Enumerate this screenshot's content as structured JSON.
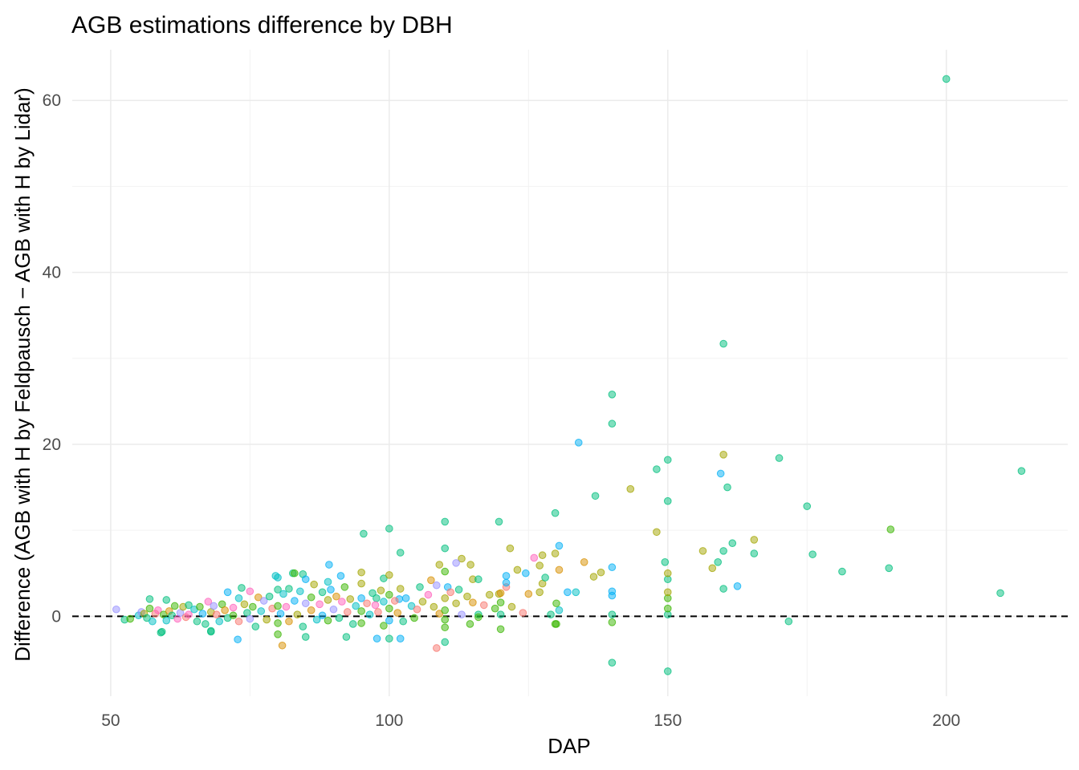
{
  "chart_data": {
    "type": "scatter",
    "title": "AGB estimations difference by DBH",
    "xlabel": "DAP",
    "ylabel": "Difference (AGB with H by Feldpausch − AGB with H by Lidar)",
    "xlim": [
      43.1,
      221.8
    ],
    "ylim": [
      -9.3,
      65.9
    ],
    "xticks": [
      50,
      100,
      150,
      200
    ],
    "yticks": [
      0,
      20,
      40,
      60
    ],
    "xminor": [
      75,
      125,
      175
    ],
    "yminor": [
      10,
      30,
      50
    ],
    "grid": true,
    "legend": "none",
    "reference_line": {
      "y": 0,
      "style": "dashed"
    },
    "palette": [
      "#F8766D",
      "#D89000",
      "#A3A500",
      "#39B600",
      "#00BF7D",
      "#00BFC4",
      "#00B0F6",
      "#9590FF",
      "#FF62BC"
    ],
    "points": [
      [
        200,
        62.5,
        4
      ],
      [
        160,
        31.7,
        4
      ],
      [
        140,
        25.8,
        4
      ],
      [
        140,
        22.4,
        4
      ],
      [
        134,
        20.2,
        6
      ],
      [
        148,
        17.1,
        4
      ],
      [
        150,
        18.2,
        4
      ],
      [
        160,
        18.8,
        2
      ],
      [
        170,
        18.4,
        4
      ],
      [
        213.5,
        16.9,
        4
      ],
      [
        159.5,
        16.6,
        6
      ],
      [
        160.7,
        15.0,
        4
      ],
      [
        143.3,
        14.8,
        2
      ],
      [
        137,
        14.0,
        4
      ],
      [
        175,
        12.8,
        4
      ],
      [
        150,
        13.4,
        4
      ],
      [
        129.8,
        12.0,
        4
      ],
      [
        110,
        11.0,
        4
      ],
      [
        119.7,
        11.0,
        4
      ],
      [
        100,
        10.2,
        4
      ],
      [
        190,
        10.1,
        3
      ],
      [
        95.4,
        9.6,
        4
      ],
      [
        148,
        9.8,
        2
      ],
      [
        161.6,
        8.5,
        4
      ],
      [
        165.5,
        8.9,
        2
      ],
      [
        130.5,
        8.2,
        6
      ],
      [
        121.7,
        7.9,
        2
      ],
      [
        156.3,
        7.6,
        2
      ],
      [
        160,
        7.6,
        4
      ],
      [
        165.5,
        7.3,
        4
      ],
      [
        176,
        7.2,
        4
      ],
      [
        102,
        7.4,
        4
      ],
      [
        110,
        7.9,
        4
      ],
      [
        129.8,
        7.3,
        2
      ],
      [
        158,
        5.6,
        2
      ],
      [
        159,
        6.3,
        4
      ],
      [
        181.3,
        5.2,
        4
      ],
      [
        189.7,
        5.6,
        4
      ],
      [
        140,
        5.7,
        6
      ],
      [
        135,
        6.3,
        1
      ],
      [
        149.5,
        6.3,
        4
      ],
      [
        162.5,
        3.5,
        6
      ],
      [
        160,
        3.2,
        4
      ],
      [
        209.7,
        2.7,
        4
      ],
      [
        171.7,
        -0.6,
        4
      ],
      [
        140,
        -5.4,
        4
      ],
      [
        150,
        -6.4,
        4
      ],
      [
        108.5,
        -3.7,
        0
      ],
      [
        110,
        -3.0,
        4
      ],
      [
        129.8,
        -0.9,
        3
      ],
      [
        140,
        -0.7,
        3
      ],
      [
        140,
        0.2,
        4
      ],
      [
        150,
        0.2,
        4
      ],
      [
        150,
        0.9,
        3
      ],
      [
        150,
        2.1,
        3
      ],
      [
        150,
        2.8,
        2
      ],
      [
        150,
        4.3,
        4
      ],
      [
        150,
        5.0,
        2
      ],
      [
        140,
        2.9,
        6
      ],
      [
        140,
        2.4,
        6
      ],
      [
        132,
        2.8,
        6
      ],
      [
        133.5,
        2.8,
        5
      ],
      [
        127.5,
        3.8,
        2
      ],
      [
        128,
        4.5,
        4
      ],
      [
        127,
        5.9,
        2
      ],
      [
        127.5,
        7.1,
        2
      ],
      [
        124.5,
        5.0,
        6
      ],
      [
        123,
        5.4,
        2
      ],
      [
        121,
        4.7,
        6
      ],
      [
        121,
        3.4,
        0
      ],
      [
        119.7,
        2.6,
        2
      ],
      [
        136.7,
        4.6,
        2
      ],
      [
        138,
        5.1,
        2
      ],
      [
        130.5,
        5.4,
        1
      ],
      [
        130.5,
        0.7,
        5
      ],
      [
        115,
        4.3,
        2
      ],
      [
        116,
        4.3,
        4
      ],
      [
        113,
        6.7,
        2
      ],
      [
        114.6,
        6.0,
        2
      ],
      [
        116,
        0.2,
        4
      ],
      [
        101.8,
        2.0,
        6
      ],
      [
        97.7,
        2.1,
        4
      ],
      [
        102,
        -2.6,
        6
      ],
      [
        97.8,
        -2.6,
        6
      ],
      [
        100,
        -2.6,
        4
      ],
      [
        92.3,
        -2.4,
        4
      ],
      [
        72.8,
        -2.7,
        6
      ],
      [
        80.8,
        -3.4,
        1
      ],
      [
        59.2,
        -1.8,
        4
      ],
      [
        68,
        -1.8,
        4
      ],
      [
        89.2,
        6.0,
        6
      ],
      [
        91.3,
        4.7,
        6
      ],
      [
        82.7,
        5.0,
        4
      ],
      [
        84.5,
        4.9,
        4
      ],
      [
        79.6,
        4.7,
        5
      ],
      [
        51,
        0.8,
        7
      ],
      [
        52.5,
        -0.4,
        4
      ],
      [
        53.5,
        -0.3,
        3
      ],
      [
        55,
        0.1,
        5
      ],
      [
        55.5,
        0.5,
        7
      ],
      [
        56,
        0.3,
        2
      ],
      [
        56.5,
        -0.2,
        4
      ],
      [
        57,
        2,
        4
      ],
      [
        57,
        0.9,
        3
      ],
      [
        57.5,
        -0.6,
        5
      ],
      [
        58,
        0.3,
        0
      ],
      [
        58.5,
        0.7,
        8
      ],
      [
        59,
        -1.9,
        4
      ],
      [
        59.5,
        0.2,
        3
      ],
      [
        60,
        1.9,
        4
      ],
      [
        60,
        -0.5,
        5
      ],
      [
        60.5,
        0.6,
        1
      ],
      [
        61,
        0.1,
        4
      ],
      [
        61.5,
        1.2,
        3
      ],
      [
        62,
        -0.3,
        8
      ],
      [
        62.5,
        0.4,
        7
      ],
      [
        63,
        1.1,
        2
      ],
      [
        63.5,
        -0.1,
        0
      ],
      [
        64,
        1.3,
        4
      ],
      [
        64,
        0.2,
        8
      ],
      [
        65,
        0.8,
        5
      ],
      [
        65.5,
        -0.6,
        4
      ],
      [
        66,
        1.1,
        3
      ],
      [
        66.5,
        0.3,
        6
      ],
      [
        67,
        -0.9,
        4
      ],
      [
        67.5,
        1.7,
        8
      ],
      [
        68,
        0.5,
        2
      ],
      [
        68,
        -1.7,
        4
      ],
      [
        68.5,
        1.2,
        7
      ],
      [
        69,
        0.2,
        0
      ],
      [
        69.5,
        -0.6,
        5
      ],
      [
        70,
        1.4,
        3
      ],
      [
        70.5,
        0.7,
        1
      ],
      [
        71,
        2.8,
        6
      ],
      [
        71,
        -0.2,
        4
      ],
      [
        72,
        1.0,
        8
      ],
      [
        72,
        0.1,
        3
      ],
      [
        73,
        2.1,
        5
      ],
      [
        73,
        -0.6,
        0
      ],
      [
        73.5,
        3.3,
        4
      ],
      [
        74,
        1.4,
        2
      ],
      [
        74.5,
        0.4,
        4
      ],
      [
        75,
        2.9,
        8
      ],
      [
        75,
        -0.3,
        7
      ],
      [
        75.5,
        1.1,
        3
      ],
      [
        76,
        -1.2,
        4
      ],
      [
        76.5,
        2.2,
        1
      ],
      [
        77,
        0.6,
        5
      ],
      [
        77.5,
        1.8,
        7
      ],
      [
        78,
        -0.4,
        2
      ],
      [
        78.5,
        2.3,
        4
      ],
      [
        79,
        0.9,
        0
      ],
      [
        80,
        4.5,
        5
      ],
      [
        80,
        3.1,
        4
      ],
      [
        80,
        1.2,
        3
      ],
      [
        80,
        -0.8,
        3
      ],
      [
        80,
        -2.1,
        3
      ],
      [
        80.5,
        0.3,
        6
      ],
      [
        81,
        2.6,
        5
      ],
      [
        81.5,
        1.1,
        8
      ],
      [
        82,
        3.2,
        4
      ],
      [
        82,
        -0.6,
        1
      ],
      [
        83,
        1.8,
        6
      ],
      [
        83,
        5,
        3
      ],
      [
        83.5,
        0.2,
        2
      ],
      [
        84,
        2.9,
        5
      ],
      [
        84.5,
        -1.2,
        4
      ],
      [
        85,
        1.5,
        7
      ],
      [
        85,
        4.3,
        6
      ],
      [
        85,
        -2.4,
        4
      ],
      [
        86,
        0.7,
        1
      ],
      [
        86,
        2.2,
        3
      ],
      [
        86.5,
        3.7,
        2
      ],
      [
        87,
        -0.4,
        5
      ],
      [
        87.5,
        1.4,
        8
      ],
      [
        88,
        2.8,
        4
      ],
      [
        88,
        0.1,
        6
      ],
      [
        89,
        4,
        5
      ],
      [
        89,
        1.9,
        2
      ],
      [
        89,
        -0.5,
        3
      ],
      [
        89.5,
        3.1,
        6
      ],
      [
        90,
        0.8,
        7
      ],
      [
        90.5,
        2.3,
        1
      ],
      [
        91,
        -0.2,
        4
      ],
      [
        91.5,
        1.7,
        8
      ],
      [
        92,
        3.4,
        3
      ],
      [
        92.5,
        0.5,
        0
      ],
      [
        93,
        2.0,
        2
      ],
      [
        93.5,
        -0.9,
        4
      ],
      [
        94,
        1.2,
        5
      ],
      [
        95,
        5.1,
        2
      ],
      [
        95,
        3.8,
        2
      ],
      [
        95,
        2.1,
        6
      ],
      [
        95,
        0.6,
        3
      ],
      [
        95,
        -0.8,
        3
      ],
      [
        96,
        1.5,
        0
      ],
      [
        96.5,
        0.2,
        5
      ],
      [
        97,
        2.7,
        4
      ],
      [
        97.5,
        1.3,
        8
      ],
      [
        98,
        0.5,
        0
      ],
      [
        98.5,
        3.0,
        2
      ],
      [
        99,
        4.4,
        4
      ],
      [
        99,
        1.7,
        5
      ],
      [
        99,
        -1.1,
        3
      ],
      [
        100,
        4.8,
        2
      ],
      [
        100,
        2.5,
        3
      ],
      [
        100,
        0.9,
        3
      ],
      [
        100,
        -0.5,
        6
      ],
      [
        101,
        1.8,
        0
      ],
      [
        101.5,
        0.4,
        1
      ],
      [
        102,
        3.2,
        2
      ],
      [
        102.5,
        -0.6,
        4
      ],
      [
        103,
        2.1,
        6
      ],
      [
        104,
        1.2,
        5
      ],
      [
        104.5,
        -0.2,
        3
      ],
      [
        105,
        0.8,
        0
      ],
      [
        105.5,
        3.4,
        4
      ],
      [
        106,
        1.7,
        2
      ],
      [
        107,
        2.5,
        8
      ],
      [
        107.5,
        4.2,
        1
      ],
      [
        108,
        1.1,
        2
      ],
      [
        108.5,
        3.6,
        7
      ],
      [
        109,
        0.3,
        1
      ],
      [
        110,
        5.2,
        3
      ],
      [
        110,
        2.1,
        2
      ],
      [
        110,
        0.7,
        3
      ],
      [
        110,
        -0.4,
        3
      ],
      [
        110,
        -1.3,
        3
      ],
      [
        110.5,
        3.4,
        6
      ],
      [
        111,
        2.8,
        0
      ],
      [
        112,
        1.5,
        2
      ],
      [
        112.5,
        3.1,
        4
      ],
      [
        113,
        0.2,
        7
      ],
      [
        114,
        2.3,
        2
      ],
      [
        114.5,
        -0.9,
        3
      ],
      [
        115,
        1.6,
        1
      ],
      [
        116,
        -0.1,
        3
      ],
      [
        117,
        1.3,
        0
      ],
      [
        118,
        2.5,
        2
      ],
      [
        119,
        0.9,
        3
      ],
      [
        120,
        -1.5,
        3
      ],
      [
        120,
        0.2,
        4
      ],
      [
        120,
        1.6,
        3
      ],
      [
        120,
        2.7,
        1
      ],
      [
        121,
        3.9,
        6
      ],
      [
        122,
        1.1,
        2
      ],
      [
        124,
        0.4,
        0
      ],
      [
        125,
        2.6,
        1
      ],
      [
        126,
        6.8,
        8
      ],
      [
        127,
        2.8,
        2
      ],
      [
        129,
        0.2,
        4
      ],
      [
        130,
        1.5,
        3
      ],
      [
        130,
        -0.9,
        3
      ],
      [
        112,
        6.2,
        7
      ],
      [
        109,
        6.0,
        2
      ]
    ]
  }
}
